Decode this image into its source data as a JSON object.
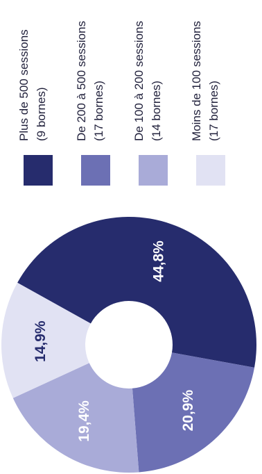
{
  "chart_data": {
    "type": "pie",
    "donut": true,
    "slices": [
      {
        "label": "Plus de 500 sessions",
        "count": "(9 bornes)",
        "value": 44.8,
        "value_label": "44,8%",
        "color": "#262c6d",
        "text_color": "#ffffff"
      },
      {
        "label": "De 200 à 500 sessions",
        "count": "(17 bornes)",
        "value": 20.9,
        "value_label": "20,9%",
        "color": "#6c70b4",
        "text_color": "#ffffff"
      },
      {
        "label": "De 100 à 200 sessions",
        "count": "(14 bornes)",
        "value": 19.4,
        "value_label": "19,4%",
        "color": "#a9abd8",
        "text_color": "#ffffff"
      },
      {
        "label": "Moins de 100 sessions",
        "count": "(17 bornes)",
        "value": 14.9,
        "value_label": "14,9%",
        "color": "#e1e2f3",
        "text_color": "#262c6d"
      }
    ],
    "legend_placement": "right"
  }
}
